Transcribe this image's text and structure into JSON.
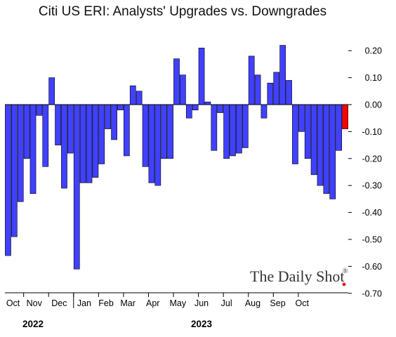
{
  "chart_data": {
    "type": "bar",
    "title": "Citi US ERI: Analysts' Upgrades vs. Downgrades",
    "xlabel": "",
    "ylabel": "",
    "ylim": [
      -0.7,
      0.25
    ],
    "yticks": [
      0.2,
      0.1,
      0.0,
      -0.1,
      -0.2,
      -0.3,
      -0.4,
      -0.5,
      -0.6,
      -0.7
    ],
    "ytick_labels": [
      "0.20",
      "0.10",
      "0.00",
      "-0.10",
      "-0.20",
      "-0.30",
      "-0.40",
      "-0.50",
      "-0.60",
      "-0.70"
    ],
    "y_axis_side": "right",
    "grid": false,
    "values": [
      -0.56,
      -0.49,
      -0.36,
      -0.2,
      -0.33,
      -0.04,
      -0.23,
      0.1,
      -0.15,
      -0.31,
      -0.18,
      -0.61,
      -0.29,
      -0.29,
      -0.27,
      -0.22,
      -0.09,
      -0.13,
      -0.02,
      -0.19,
      0.07,
      0.05,
      -0.23,
      -0.29,
      -0.3,
      -0.2,
      -0.2,
      0.17,
      0.11,
      -0.05,
      -0.02,
      0.21,
      0.01,
      -0.17,
      -0.03,
      -0.2,
      -0.19,
      -0.18,
      -0.16,
      0.18,
      0.11,
      -0.05,
      0.08,
      0.12,
      0.22,
      0.09,
      -0.22,
      -0.1,
      -0.2,
      -0.26,
      -0.3,
      -0.33,
      -0.35,
      -0.17,
      -0.09
    ],
    "month_labels": [
      "Oct",
      "Nov",
      "Dec",
      "Jan",
      "Feb",
      "Mar",
      "Apr",
      "May",
      "Jun",
      "Jul",
      "Aug",
      "Sep",
      "Oct"
    ],
    "month_label_bar_index": [
      1.3,
      4.7,
      8.7,
      12.7,
      16.2,
      19.7,
      23.7,
      27.7,
      31.5,
      35.5,
      39.7,
      43.7,
      47.6
    ],
    "month_separator_bar_index": [
      3.0,
      7.0,
      11.0,
      15.0,
      19.0,
      23.0,
      27.0,
      31.0,
      35.0,
      39.0,
      43.0,
      47.0
    ],
    "year_labels": [
      "2022",
      "2023"
    ],
    "year_label_bar_index": [
      4.5,
      31.5
    ],
    "year_separator_bar_index": 11.0,
    "bar_color": "#4040FF",
    "latest_bar_color": "#FF0000",
    "latest_bar_index": 54
  },
  "watermark": {
    "text": "The Daily Shot",
    "mark": "®",
    "dot_color": "#E02020"
  }
}
